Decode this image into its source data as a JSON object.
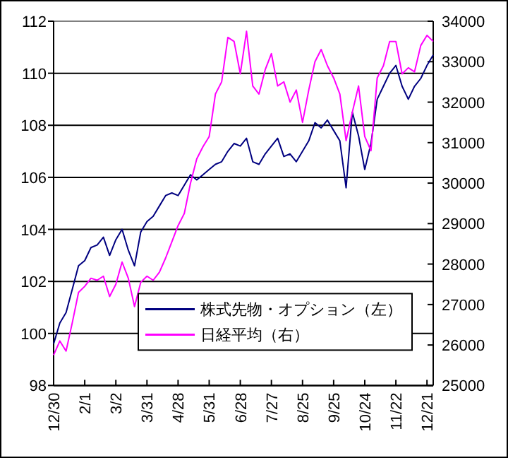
{
  "chart_data": {
    "type": "line",
    "categories": [
      "12/30",
      null,
      null,
      null,
      null,
      "2/1",
      null,
      null,
      null,
      null,
      "3/2",
      null,
      null,
      null,
      null,
      "3/31",
      null,
      null,
      null,
      null,
      "4/28",
      null,
      null,
      null,
      null,
      "5/31",
      null,
      null,
      null,
      null,
      "6/28",
      null,
      null,
      null,
      null,
      "7/27",
      null,
      null,
      null,
      null,
      "8/25",
      null,
      null,
      null,
      null,
      "9/25",
      null,
      null,
      null,
      null,
      "10/24",
      null,
      null,
      null,
      null,
      "11/22",
      null,
      null,
      null,
      null,
      "12/21",
      null
    ],
    "series": [
      {
        "name": "株式先物・オプション（左）",
        "color": "#000080",
        "values": [
          99.6,
          100.4,
          100.8,
          101.7,
          102.6,
          102.8,
          103.3,
          103.4,
          103.7,
          103.0,
          103.6,
          104.0,
          103.2,
          102.6,
          103.9,
          104.3,
          104.5,
          104.9,
          105.3,
          105.4,
          105.3,
          105.7,
          106.1,
          105.9,
          106.1,
          106.3,
          106.5,
          106.6,
          107.0,
          107.3,
          107.2,
          107.5,
          106.6,
          106.5,
          106.9,
          107.2,
          107.5,
          106.8,
          106.9,
          106.6,
          107.0,
          107.4,
          108.1,
          107.9,
          108.2,
          107.8,
          107.4,
          105.6,
          108.5,
          107.6,
          106.3,
          107.3,
          109.0,
          109.5,
          110.0,
          110.3,
          109.5,
          109.0,
          109.5,
          109.8,
          110.3,
          110.7
        ]
      },
      {
        "name": "日経平均（右）",
        "color": "#ff00ff",
        "axis": "y2",
        "values": [
          25750,
          26100,
          25850,
          26550,
          27300,
          27450,
          27650,
          27600,
          27700,
          27200,
          27500,
          28050,
          27650,
          26950,
          27550,
          27700,
          27600,
          27800,
          28150,
          28550,
          28950,
          29250,
          30000,
          30600,
          30900,
          31150,
          32200,
          32500,
          33600,
          33500,
          32700,
          33750,
          32400,
          32200,
          32800,
          33200,
          32400,
          32500,
          32000,
          32300,
          31500,
          32300,
          33000,
          33300,
          32900,
          32600,
          32200,
          31050,
          31750,
          32400,
          31150,
          30800,
          32600,
          32900,
          33500,
          33500,
          32700,
          32850,
          32750,
          33400,
          33650,
          33500
        ]
      }
    ],
    "ylim": [
      98,
      112
    ],
    "yticks": [
      98,
      100,
      102,
      104,
      106,
      108,
      110,
      112
    ],
    "y2lim": [
      25000,
      34000
    ],
    "y2ticks": [
      25000,
      26000,
      27000,
      28000,
      29000,
      30000,
      31000,
      32000,
      33000,
      34000
    ],
    "grid": "y",
    "legend": "bottom right"
  }
}
